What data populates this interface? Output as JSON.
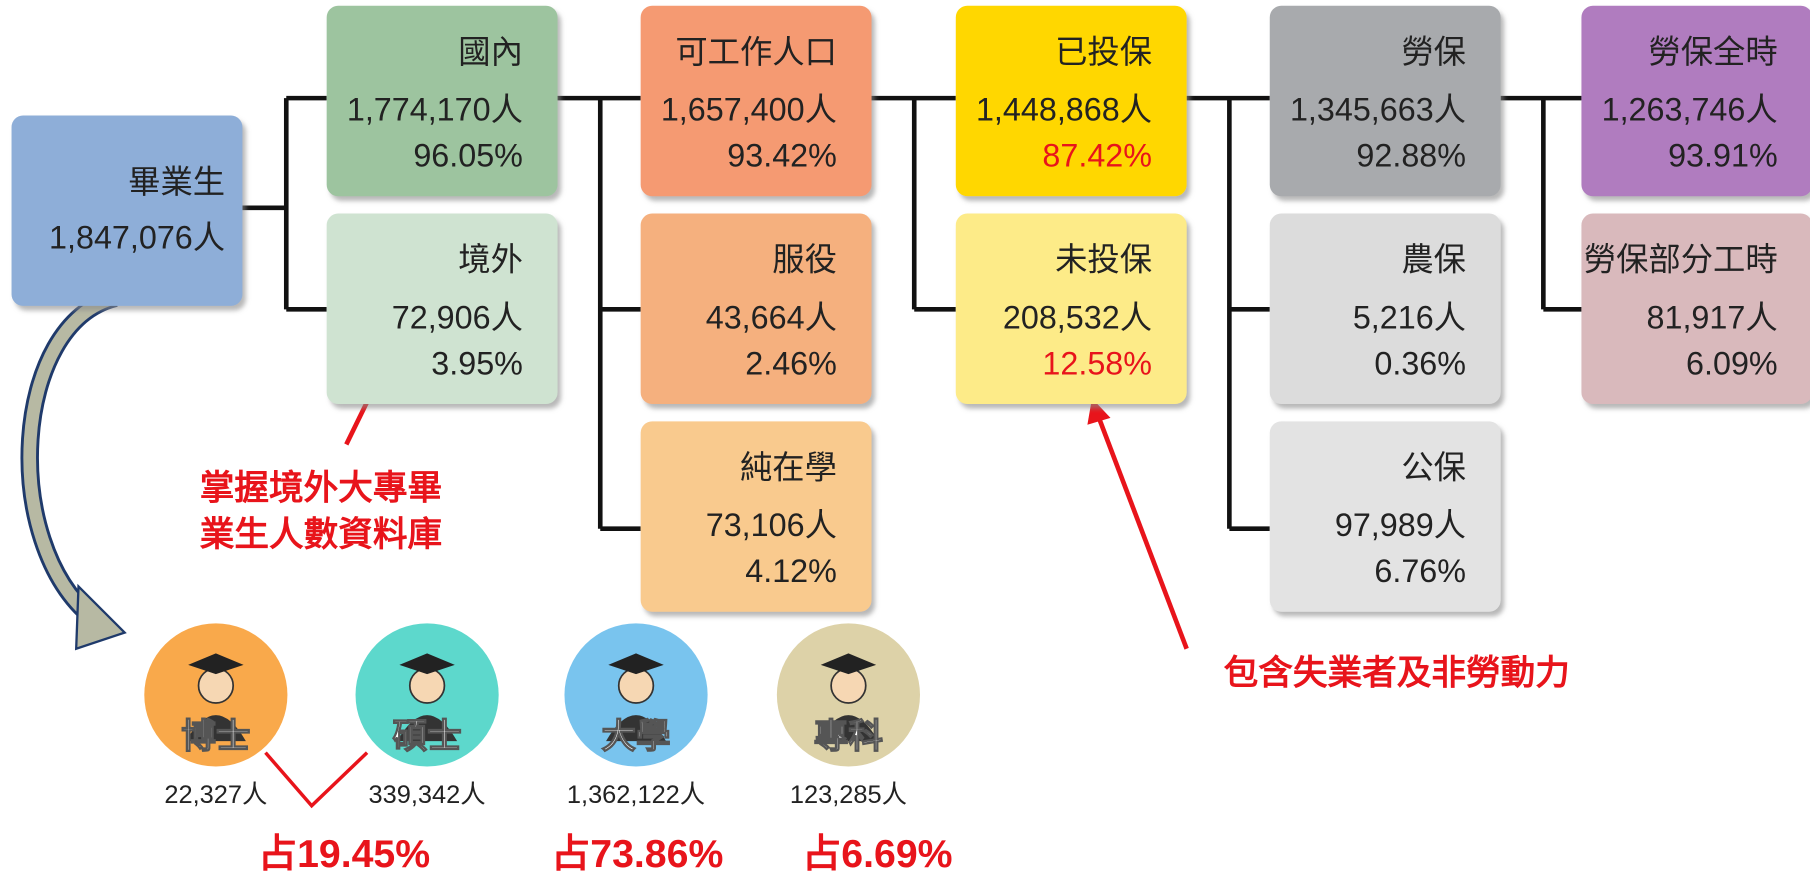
{
  "nodes": [
    {
      "label": "畢業生",
      "count": "1,847,076人"
    },
    {
      "label": "國內",
      "count": "1,774,170人",
      "percent": "96.05%"
    },
    {
      "label": "境外",
      "count": "72,906人",
      "percent": "3.95%"
    },
    {
      "label": "可工作人口",
      "count": "1,657,400人",
      "percent": "93.42%"
    },
    {
      "label": "服役",
      "count": "43,664人",
      "percent": "2.46%"
    },
    {
      "label": "純在學",
      "count": "73,106人",
      "percent": "4.12%"
    },
    {
      "label": "已投保",
      "count": "1,448,868人",
      "percent": "87.42%"
    },
    {
      "label": "未投保",
      "count": "208,532人",
      "percent": "12.58%"
    },
    {
      "label": "勞保",
      "count": "1,345,663人",
      "percent": "92.88%"
    },
    {
      "label": "農保",
      "count": "5,216人",
      "percent": "0.36%"
    },
    {
      "label": "公保",
      "count": "97,989人",
      "percent": "6.76%"
    },
    {
      "label": "勞保全時",
      "count": "1,263,746人",
      "percent": "93.91%"
    },
    {
      "label": "勞保部分工時",
      "count": "81,917人",
      "percent": "6.09%"
    }
  ],
  "degrees": [
    {
      "label": "博士",
      "count": "22,327人"
    },
    {
      "label": "碩士",
      "count": "339,342人"
    },
    {
      "label": "大學",
      "count": "1,362,122人"
    },
    {
      "label": "專科",
      "count": "123,285人"
    }
  ],
  "shares": [
    "占19.45%",
    "占73.86%",
    "占6.69%"
  ],
  "annotations": [
    {
      "lines": [
        "掌握境外大專畢",
        "業生人數資料庫"
      ]
    },
    {
      "lines": [
        "包含失業者及非勞動力"
      ]
    }
  ]
}
